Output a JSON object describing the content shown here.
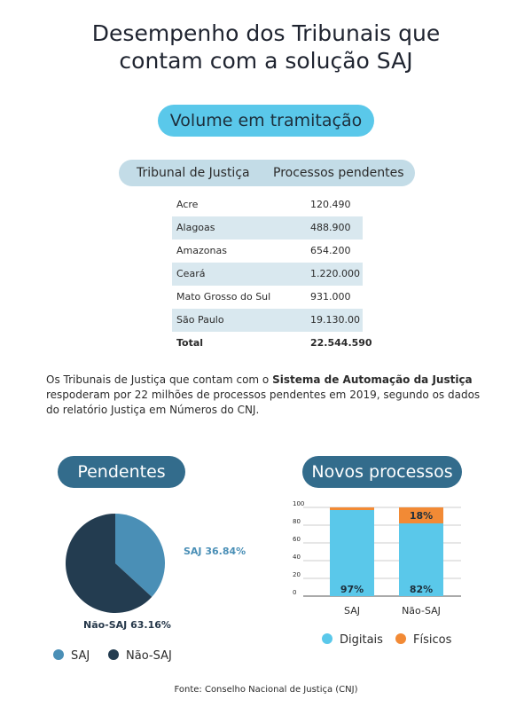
{
  "header": {
    "title_line1": "Desempenho dos Tribunais que",
    "title_line2": "contam com a solução SAJ"
  },
  "volume": {
    "pill_label": "Volume em tramitação",
    "col_tribunal": "Tribunal de Justiça",
    "col_processos": "Processos pendentes",
    "rows": [
      {
        "tribunal": "Acre",
        "valor": "120.490"
      },
      {
        "tribunal": "Alagoas",
        "valor": "488.900"
      },
      {
        "tribunal": "Amazonas",
        "valor": "654.200"
      },
      {
        "tribunal": "Ceará",
        "valor": "1.220.000"
      },
      {
        "tribunal": "Mato Grosso do Sul",
        "valor": "931.000"
      },
      {
        "tribunal": "São Paulo",
        "valor": "19.130.00"
      }
    ],
    "total_label": "Total",
    "total_value": "22.544.590"
  },
  "paragraph": {
    "part1": "Os Tribunais de Justiça que contam com o ",
    "bold": "Sistema de Automação da Justiça",
    "part2": " respoderam por 22 milhões de  processos pendentes em 2019, segundo os dados do relatório Justiça em Números do CNJ."
  },
  "pendentes": {
    "pill_label": "Pendentes",
    "label_saj": "SAJ 36.84%",
    "label_nao_saj": "Não-SAJ 63.16%",
    "legend_saj": "SAJ",
    "legend_nao_saj": "Não-SAJ"
  },
  "novos": {
    "pill_label": "Novos processos",
    "label_saj_digital": "97%",
    "label_nao_saj_digital": "82%",
    "label_nao_saj_fisico": "18%",
    "legend_digitais": "Digitais",
    "legend_fisicos": "Físicos"
  },
  "colors": {
    "light_blue": "#5ac8ea",
    "orange": "#f28a35",
    "pie_saj": "#4a8fb6",
    "pie_nao_saj": "#233c50",
    "pill_dark": "#336c8c"
  },
  "chart_data": [
    {
      "type": "pie",
      "categories": [
        "SAJ",
        "Não-SAJ"
      ],
      "values": [
        36.84,
        63.16
      ],
      "legend": "bottom"
    },
    {
      "type": "bar",
      "stacked": true,
      "categories": [
        "SAJ",
        "Não-SAJ"
      ],
      "series": [
        {
          "name": "Digitais",
          "values": [
            97,
            82
          ]
        },
        {
          "name": "Físicos",
          "values": [
            3,
            18
          ]
        }
      ],
      "yticks": [
        0,
        20,
        40,
        60,
        80,
        100
      ],
      "ylim": [
        0,
        100
      ],
      "grid": true,
      "legend": "bottom"
    }
  ],
  "source": "Fonte: Conselho Nacional de Justiça (CNJ)"
}
